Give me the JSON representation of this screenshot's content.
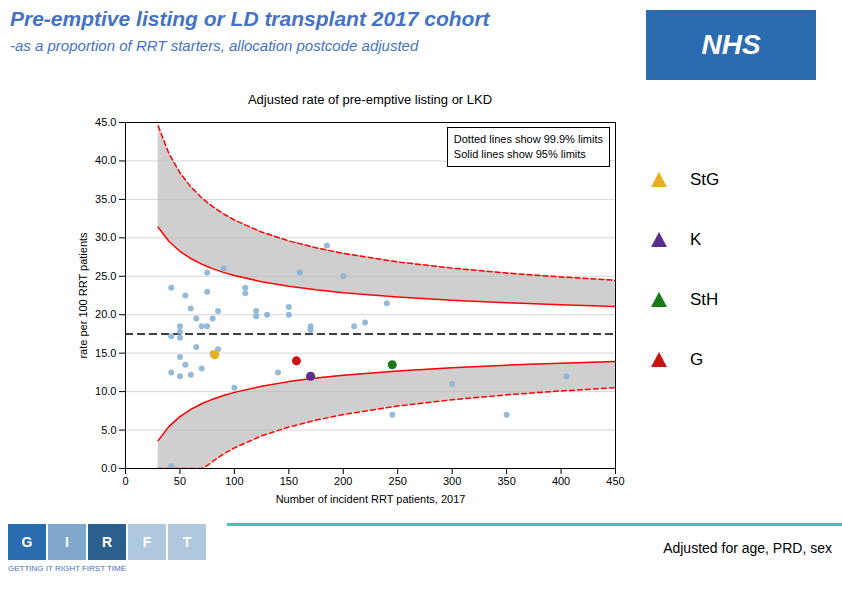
{
  "chart_data": {
    "type": "scatter",
    "title": "Pre-emptive listing or LD transplant 2017 cohort",
    "subtitle": "-as a proportion of RRT starters, allocation postcode adjusted",
    "title_color": "#4472c4",
    "plot_title": "Adjusted rate of pre-emptive listing or LKD",
    "x_label": "Number of incident RRT patients, 2017",
    "y_label": "rate per 100 RRT patients",
    "xlim": [
      0,
      450
    ],
    "ylim": [
      0.0,
      45.0
    ],
    "xticks": [
      0,
      50,
      100,
      150,
      200,
      250,
      300,
      350,
      400,
      450
    ],
    "yticks": [
      {
        "value": 0,
        "label": "0.0"
      },
      {
        "value": 5,
        "label": "5.0"
      },
      {
        "value": 10,
        "label": "10.0"
      },
      {
        "value": 15,
        "label": "15.0"
      },
      {
        "value": 20,
        "label": "20.0"
      },
      {
        "value": 25,
        "label": "25.0"
      },
      {
        "value": 30,
        "label": "30.0"
      },
      {
        "value": 35,
        "label": "35.0"
      },
      {
        "value": 40,
        "label": "40.0"
      },
      {
        "value": 45,
        "label": "45.0"
      }
    ],
    "grid": "y",
    "mean": {
      "value": 17.5,
      "color": "black",
      "line_style": "dashed"
    },
    "limits_x": [
      30,
      40,
      50,
      60,
      70,
      75,
      80,
      90,
      100,
      125,
      150,
      175,
      200,
      250,
      300,
      350,
      400,
      450
    ],
    "limits": [
      {
        "color": "red",
        "line_style": "solid",
        "upper": [
          31.37,
          29.52,
          28.25,
          27.31,
          26.58,
          26.28,
          26.0,
          25.51,
          25.1,
          24.3,
          23.7,
          23.24,
          22.87,
          22.31,
          21.89,
          21.56,
          21.3,
          21.08
        ],
        "lower": [
          3.63,
          5.48,
          6.75,
          7.69,
          8.42,
          8.73,
          9.0,
          9.49,
          9.9,
          10.7,
          11.3,
          11.76,
          12.13,
          12.69,
          13.11,
          13.44,
          13.7,
          13.92
        ]
      },
      {
        "color": "red",
        "line_style": "dashed",
        "upper": [
          44.56,
          40.93,
          38.46,
          36.63,
          35.21,
          34.61,
          34.07,
          33.12,
          32.32,
          30.75,
          29.6,
          28.7,
          27.98,
          26.87,
          26.06,
          25.42,
          24.91,
          24.49
        ],
        "lower": [
          0,
          0,
          0,
          0,
          0,
          0.39,
          0.93,
          1.88,
          2.68,
          4.25,
          5.4,
          6.3,
          7.02,
          8.13,
          8.94,
          9.58,
          10.09,
          10.51
        ]
      }
    ],
    "points": {
      "color": "#8ab4d4",
      "marker": "circle",
      "x": [
        42,
        42,
        42,
        42,
        50,
        50,
        50,
        50,
        50,
        55,
        55,
        60,
        60,
        65,
        65,
        70,
        70,
        75,
        75,
        75,
        80,
        80,
        85,
        85,
        90,
        100,
        110,
        110,
        120,
        120,
        130,
        140,
        150,
        150,
        160,
        170,
        170,
        185,
        200,
        210,
        220,
        240,
        245,
        300,
        350,
        405
      ],
      "y": [
        0.3,
        12.5,
        17.2,
        23.5,
        12.0,
        14.5,
        17.0,
        17.8,
        18.5,
        13.5,
        22.5,
        12.2,
        20.8,
        19.5,
        15.8,
        18.5,
        13.0,
        23.0,
        18.5,
        25.5,
        15.0,
        19.5,
        20.5,
        15.5,
        26.0,
        10.5,
        23.5,
        22.8,
        20.5,
        19.8,
        20.0,
        12.5,
        21.0,
        20.0,
        25.5,
        18.5,
        18.0,
        29.0,
        25.0,
        18.5,
        19.0,
        21.5,
        7.0,
        11.0,
        7.0,
        12.0
      ]
    },
    "series": [
      {
        "name": "StG",
        "color": "#e8b020",
        "marker": "circle",
        "x": [
          82
        ],
        "values": [
          14.8
        ]
      },
      {
        "name": "K",
        "color": "#5b2d8e",
        "marker": "circle",
        "x": [
          170
        ],
        "values": [
          12.0
        ]
      },
      {
        "name": "StH",
        "color": "#1a7a1a",
        "marker": "circle",
        "x": [
          245
        ],
        "values": [
          13.5
        ]
      },
      {
        "name": "G",
        "color": "#cc1111",
        "marker": "circle",
        "x": [
          157
        ],
        "values": [
          14.0
        ]
      }
    ],
    "legend": "right",
    "annotations": [
      "Dotted lines show 99.9% limits\nSolid lines show 95% limits"
    ],
    "logos": [
      {
        "text": "NHS",
        "color": "#2b6cb0"
      },
      {
        "letters": [
          "G",
          "I",
          "R",
          "F",
          "T"
        ],
        "colors": [
          "#2b6cb0",
          "#7fa8cc",
          "#2b5f8e",
          "#b0c8de",
          "#b0c8de"
        ],
        "caption": "GETTING IT RIGHT FIRST TIME",
        "caption_color": "#4472c4"
      }
    ],
    "footer": {
      "text": "Adjusted for age, PRD, sex",
      "line_color": "#40c0c0"
    }
  }
}
